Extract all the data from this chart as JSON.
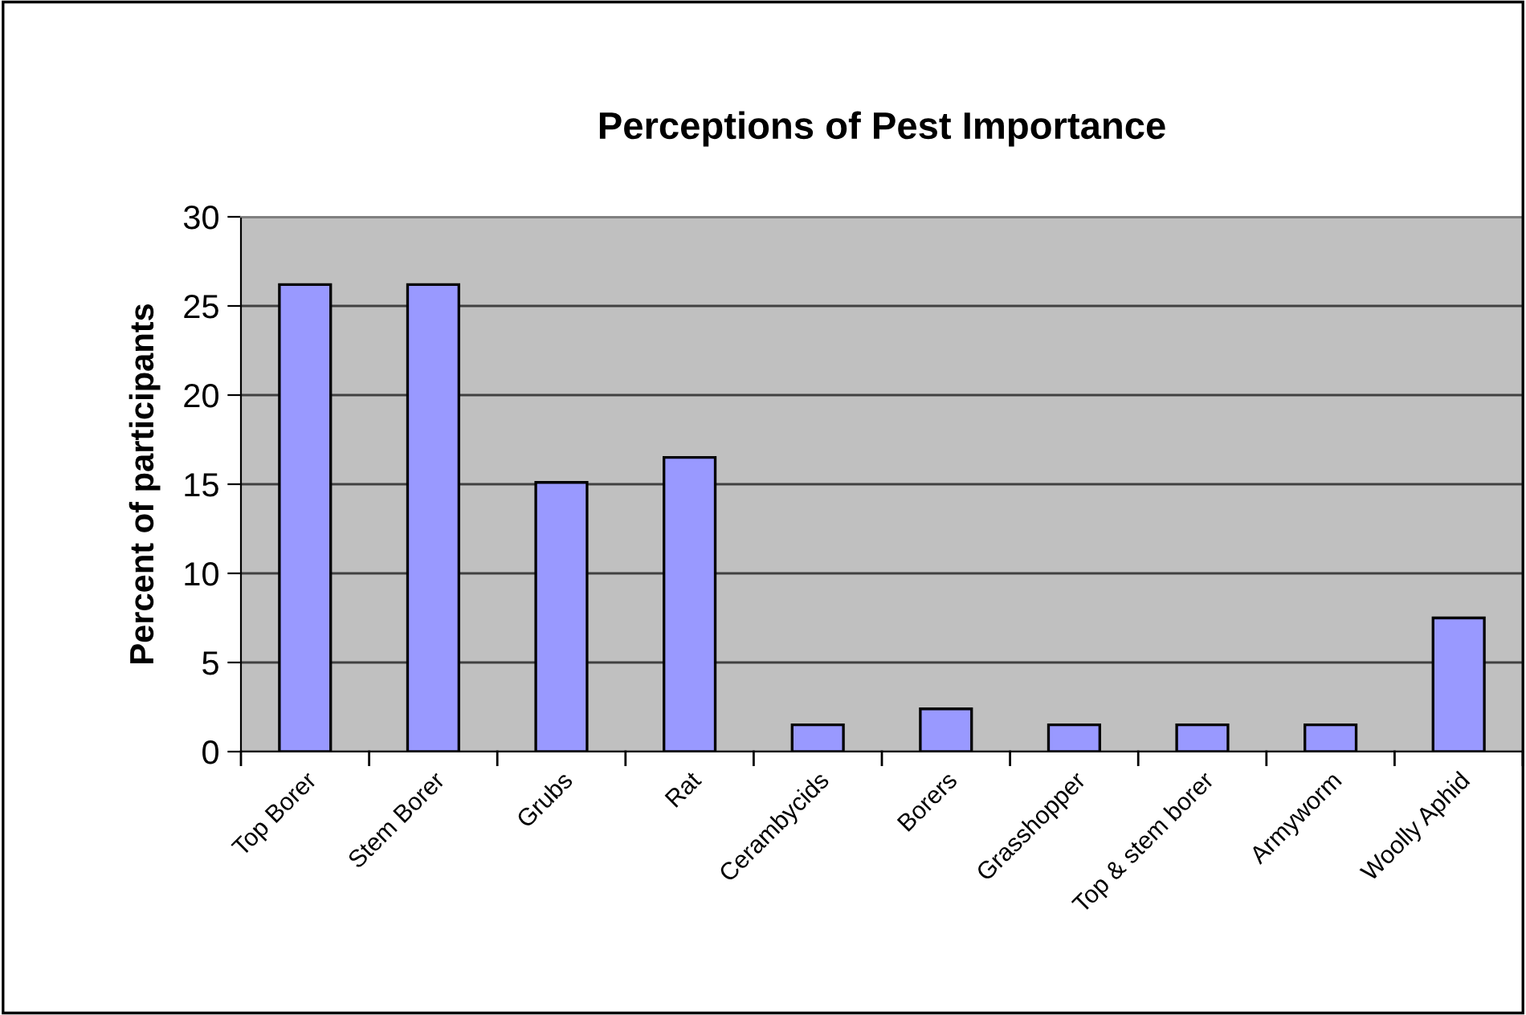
{
  "chart_data": {
    "type": "bar",
    "title": "Perceptions of Pest Importance",
    "ylabel": "Percent of participants",
    "categories": [
      "Top Borer",
      "Stem Borer",
      "Grubs",
      "Rat",
      "Cerambycids",
      "Borers",
      "Grasshopper",
      "Top & stem borer",
      "Armyworm",
      "Woolly Aphid"
    ],
    "values": [
      26.2,
      26.2,
      15.1,
      16.5,
      1.5,
      2.4,
      1.5,
      1.5,
      1.5,
      7.5
    ],
    "color": "#9999ff",
    "ylim": [
      0,
      30
    ],
    "yticks": [
      0,
      5,
      10,
      15,
      20,
      25,
      30
    ],
    "grid": "y",
    "legend": false
  }
}
